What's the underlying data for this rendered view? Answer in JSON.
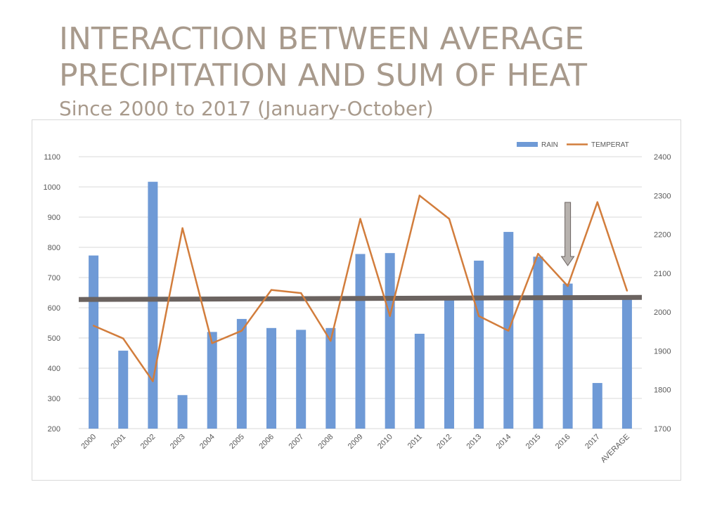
{
  "title_line1": "INTERACTION BETWEEN AVERAGE",
  "title_line2": "PRECIPITATION AND SUM OF HEAT",
  "subtitle": "Since 2000 to 2017 (January-October)",
  "colors": {
    "rain": "#6f9ad6",
    "temperature": "#d27d3c",
    "average_line": "#6b6360",
    "arrow_fill": "#b7b2ae",
    "arrow_stroke": "#6b6360",
    "gridline": "#d9d9d9",
    "tick_text": "#595959"
  },
  "chart_data": {
    "type": "bar+line",
    "categories": [
      "2000",
      "2001",
      "2002",
      "2003",
      "2004",
      "2005",
      "2006",
      "2007",
      "2008",
      "2009",
      "2010",
      "2011",
      "2012",
      "2013",
      "2014",
      "2015",
      "2016",
      "2017",
      "AVERAGE"
    ],
    "series": [
      {
        "name": "RAIN",
        "type": "bar",
        "axis": "left",
        "values": [
          773,
          458,
          1017,
          311,
          520,
          563,
          533,
          527,
          533,
          778,
          781,
          514,
          632,
          756,
          851,
          769,
          680,
          351,
          632
        ]
      },
      {
        "name": "TEMPERAT",
        "type": "line",
        "axis": "right",
        "values": [
          1965,
          1932,
          1822,
          2216,
          1920,
          1952,
          2057,
          2049,
          1926,
          2240,
          1990,
          2300,
          2240,
          1990,
          1952,
          2150,
          2067,
          2283,
          2055
        ]
      }
    ],
    "reference_line": {
      "axis": "left",
      "value": 632
    },
    "annotation": {
      "type": "arrow-down",
      "category": "2016"
    },
    "y_left": {
      "min": 200,
      "max": 1100,
      "ticks": [
        "200",
        "300",
        "400",
        "500",
        "600",
        "700",
        "800",
        "900",
        "1000",
        "1100"
      ]
    },
    "y_right": {
      "min": 1700,
      "max": 2400,
      "ticks": [
        "1700",
        "1800",
        "1900",
        "2000",
        "2100",
        "2200",
        "2300",
        "2400"
      ]
    },
    "grid": true,
    "legend_position": "top-right"
  }
}
